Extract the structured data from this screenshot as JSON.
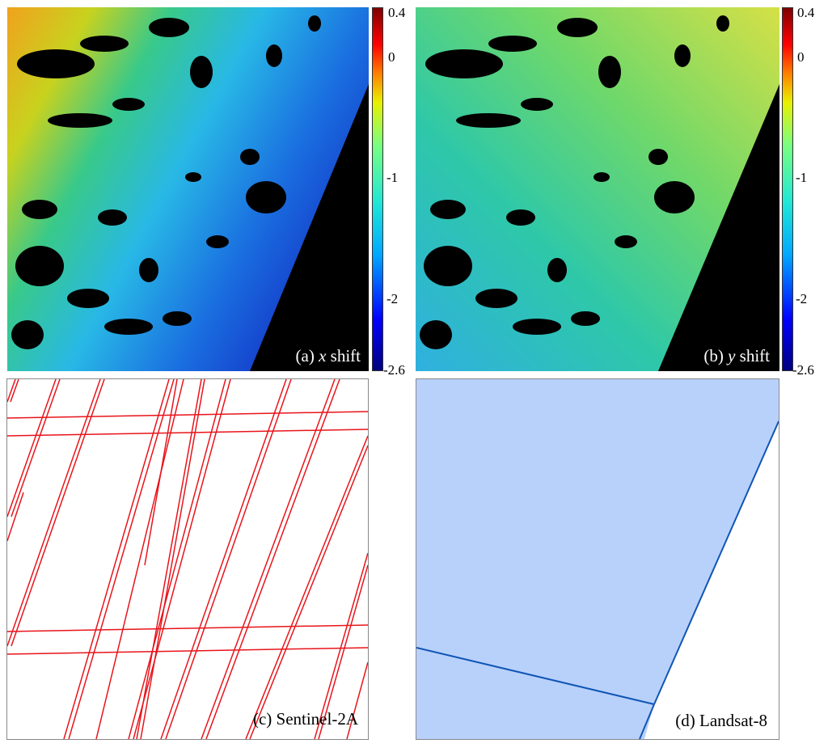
{
  "panels": {
    "a": {
      "prefix": "(a) ",
      "variable": "x",
      "suffix": " shift"
    },
    "b": {
      "prefix": "(b) ",
      "variable": "y",
      "suffix": " shift"
    },
    "c": {
      "label": "(c) Sentinel-2A"
    },
    "d": {
      "label": "(d) Landsat-8"
    }
  },
  "colorbar": {
    "ticks": [
      "0.4",
      "0",
      "-1",
      "-2",
      "-2.6"
    ],
    "colormap": "jet",
    "range": [
      -2.6,
      0.4
    ]
  },
  "colors": {
    "sentinel_lines": "#e8141b",
    "landsat_fill": "#b8d1fa",
    "landsat_edge": "#1055b5",
    "nodata": "#000000"
  }
}
